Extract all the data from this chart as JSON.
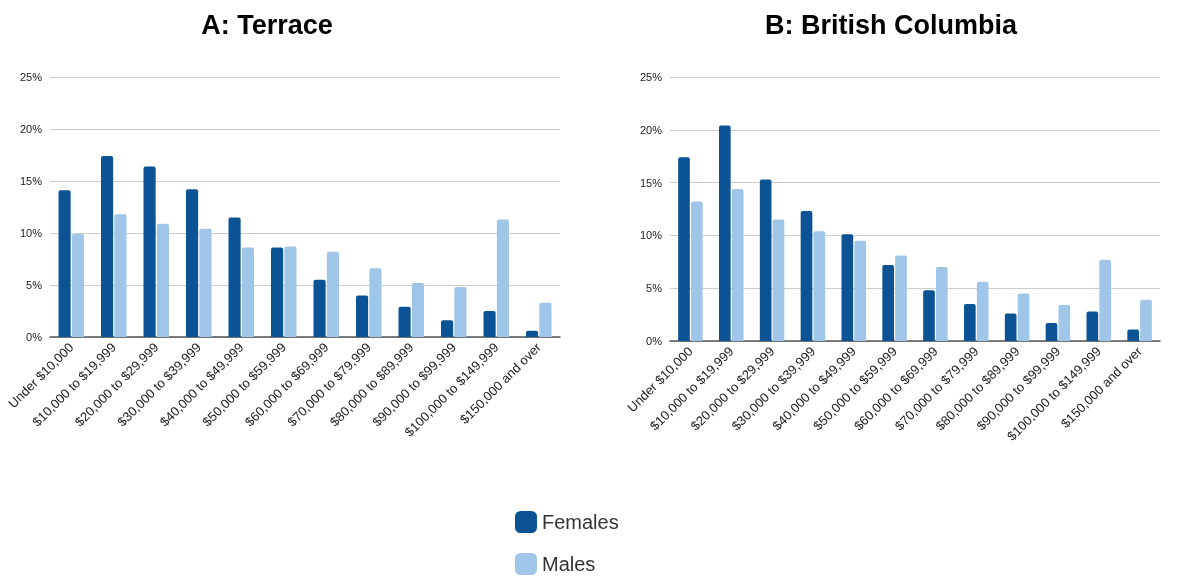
{
  "chart_data": [
    {
      "type": "bar",
      "title": "A: Terrace",
      "categories": [
        "Under $10,000",
        "$10,000 to $19,999",
        "$20,000 to $29,999",
        "$30,000 to $39,999",
        "$40,000 to $49,999",
        "$50,000 to $59,999",
        "$60,000 to $69,999",
        "$70,000 to $79,999",
        "$80,000 to $89,999",
        "$90,000 to $99,999",
        "$100,000 to $149,999",
        "$150,000 and over"
      ],
      "series": [
        {
          "name": "Females",
          "color": "#0b5394",
          "values": [
            14.1,
            17.4,
            16.4,
            14.2,
            11.5,
            8.6,
            5.5,
            4.0,
            2.9,
            1.6,
            2.5,
            0.6
          ]
        },
        {
          "name": "Males",
          "color": "#9fc5e8",
          "values": [
            9.9,
            11.8,
            10.9,
            10.4,
            8.6,
            8.7,
            8.2,
            6.6,
            5.2,
            4.8,
            11.3,
            3.3
          ]
        }
      ],
      "ylim": [
        0,
        25
      ],
      "yticks": [
        {
          "value": 0,
          "label": "0%"
        },
        {
          "value": 5,
          "label": "5%"
        },
        {
          "value": 10,
          "label": "10%"
        },
        {
          "value": 15,
          "label": "15%"
        },
        {
          "value": 20,
          "label": "20%"
        },
        {
          "value": 25,
          "label": "25%"
        }
      ],
      "grid": "y",
      "legend": "bottom"
    },
    {
      "type": "bar",
      "title": "B: British Columbia",
      "categories": [
        "Under $10,000",
        "$10,000 to $19,999",
        "$20,000 to $29,999",
        "$30,000 to $39,999",
        "$40,000 to $49,999",
        "$50,000 to $59,999",
        "$60,000 to $69,999",
        "$70,000 to $79,999",
        "$80,000 to $89,999",
        "$90,000 to $99,999",
        "$100,000 to $149,999",
        "$150,000 and over"
      ],
      "series": [
        {
          "name": "Females",
          "color": "#0b5394",
          "values": [
            17.4,
            20.4,
            15.3,
            12.3,
            10.1,
            7.2,
            4.8,
            3.5,
            2.6,
            1.7,
            2.8,
            1.1
          ]
        },
        {
          "name": "Males",
          "color": "#9fc5e8",
          "values": [
            13.2,
            14.4,
            11.5,
            10.4,
            9.5,
            8.1,
            7.0,
            5.6,
            4.5,
            3.4,
            7.7,
            3.9
          ]
        }
      ],
      "ylim": [
        0,
        25
      ],
      "yticks": [
        {
          "value": 0,
          "label": "0%"
        },
        {
          "value": 5,
          "label": "5%"
        },
        {
          "value": 10,
          "label": "10%"
        },
        {
          "value": 15,
          "label": "15%"
        },
        {
          "value": 20,
          "label": "20%"
        },
        {
          "value": 25,
          "label": "25%"
        }
      ],
      "grid": "y",
      "legend": "bottom"
    }
  ]
}
